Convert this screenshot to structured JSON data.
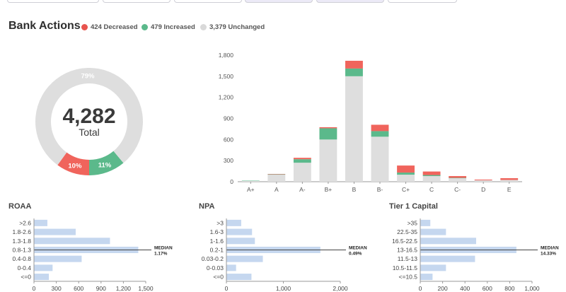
{
  "header": {
    "title": "Bank Actions",
    "legend": [
      {
        "label": "424 Decreased",
        "color": "#e8544e"
      },
      {
        "label": "479 Increased",
        "color": "#5bb98b"
      },
      {
        "label": "3,379 Unchanged",
        "color": "#d9d9d9"
      }
    ]
  },
  "donut": {
    "total_value": "4,282",
    "total_label": "Total",
    "slices": [
      {
        "name": "Unchanged",
        "percent": 79,
        "label": "79%",
        "color": "#dedede"
      },
      {
        "name": "Decreased",
        "percent": 10,
        "label": "10%",
        "color": "#f0645c"
      },
      {
        "name": "Increased",
        "percent": 11,
        "label": "11%",
        "color": "#5bb98b"
      }
    ]
  },
  "chart_data": [
    {
      "type": "bar",
      "stacked": true,
      "categories": [
        "A+",
        "A",
        "A-",
        "B+",
        "B",
        "B-",
        "C+",
        "C",
        "C-",
        "D",
        "E"
      ],
      "series": [
        {
          "name": "Unchanged",
          "color": "#dedede",
          "values": [
            10,
            100,
            270,
            600,
            1500,
            640,
            100,
            80,
            50,
            20,
            25
          ]
        },
        {
          "name": "Increased",
          "color": "#5bb98b",
          "values": [
            5,
            5,
            50,
            160,
            110,
            80,
            30,
            15,
            5,
            0,
            0
          ]
        },
        {
          "name": "Decreased",
          "color": "#f0645c",
          "values": [
            0,
            5,
            20,
            15,
            110,
            90,
            100,
            50,
            25,
            10,
            25
          ]
        }
      ],
      "yticks": [
        "0",
        "300",
        "600",
        "900",
        "1,200",
        "1,500",
        "1,800"
      ],
      "ylim": [
        0,
        1800
      ],
      "grid": false
    },
    {
      "type": "bar",
      "orientation": "horizontal",
      "title": "ROAA",
      "categories": [
        ">2.6",
        "1.8-2.6",
        "1.3-1.8",
        "0.8-1.3",
        "0.4-0.8",
        "0-0.4",
        "<=0"
      ],
      "values": [
        180,
        560,
        1020,
        1400,
        640,
        250,
        200
      ],
      "xticks": [
        "0",
        "300",
        "600",
        "900",
        "1,200",
        "1,500"
      ],
      "xlim": [
        0,
        1500
      ],
      "median_category": "0.8-1.3",
      "median_label": "MEDIAN",
      "median_value": "1.17%",
      "color": "#c5d7ef"
    },
    {
      "type": "bar",
      "orientation": "horizontal",
      "title": "NPA",
      "categories": [
        ">3",
        "1.6-3",
        "1-1.6",
        "0.2-1",
        "0.03-0.2",
        "0-0.03",
        "<=0"
      ],
      "values": [
        260,
        450,
        500,
        1650,
        640,
        170,
        440
      ],
      "xticks": [
        "0",
        "1,000",
        "2,000"
      ],
      "xlim": [
        0,
        2000
      ],
      "median_category": "0.2-1",
      "median_label": "MEDIAN",
      "median_value": "0.49%",
      "color": "#c5d7ef"
    },
    {
      "type": "bar",
      "orientation": "horizontal",
      "title": "Tier 1 Capital",
      "categories": [
        ">35",
        "22.5-35",
        "16.5-22.5",
        "13-16.5",
        "11.5-13",
        "10.5-11.5",
        "<=10.5"
      ],
      "values": [
        90,
        230,
        500,
        860,
        490,
        230,
        110
      ],
      "xticks": [
        "0",
        "200",
        "400",
        "600",
        "800",
        "1,000"
      ],
      "xlim": [
        0,
        1000
      ],
      "median_category": "13-16.5",
      "median_label": "MEDIAN",
      "median_value": "14.33%",
      "color": "#c5d7ef"
    }
  ]
}
